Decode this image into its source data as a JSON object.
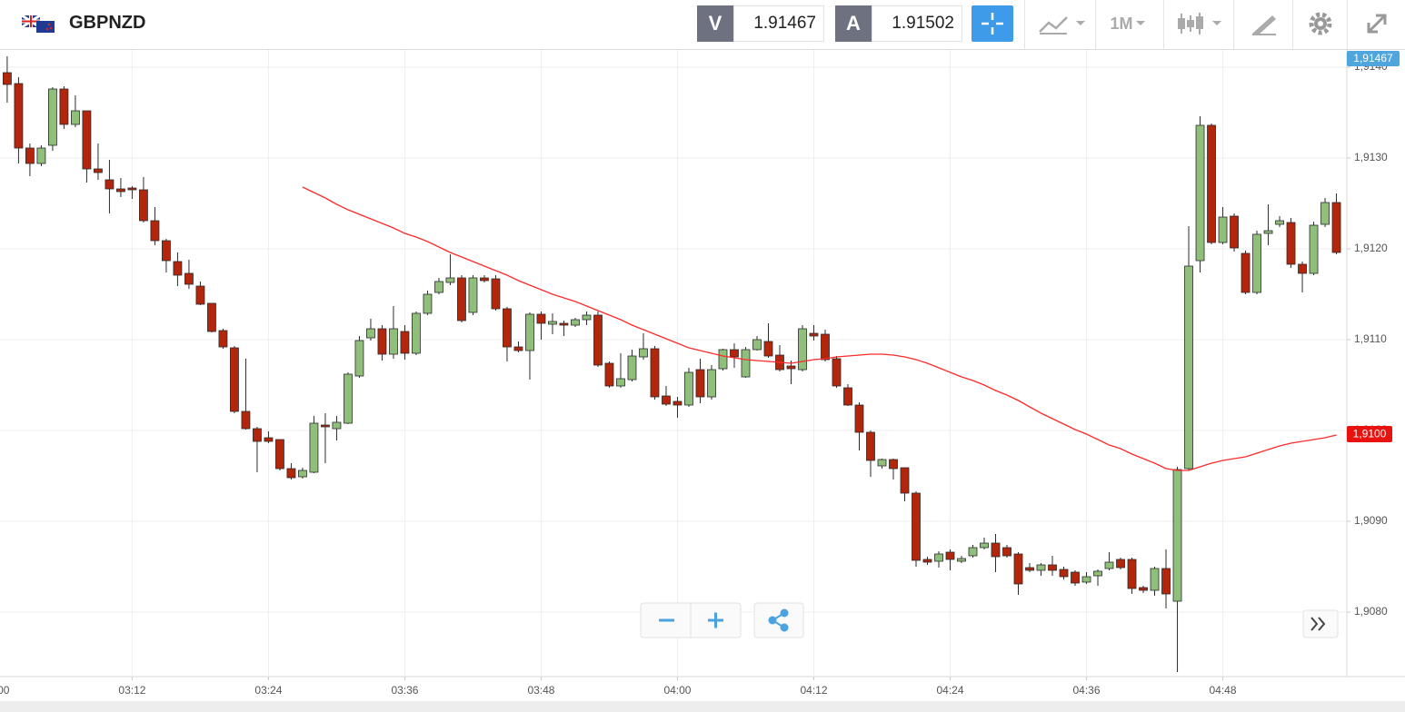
{
  "header": {
    "symbol": "GBPNZD",
    "bid_label": "V",
    "bid": "1.91467",
    "ask_label": "A",
    "ask": "1.91502",
    "timeframe": "1M"
  },
  "chart_data": {
    "type": "candlestick",
    "x": [
      "03:01",
      "03:02",
      "03:03",
      "03:04",
      "03:05",
      "03:06",
      "03:07",
      "03:08",
      "03:09",
      "03:10",
      "03:11",
      "03:12",
      "03:13",
      "03:14",
      "03:15",
      "03:16",
      "03:17",
      "03:18",
      "03:19",
      "03:20",
      "03:21",
      "03:22",
      "03:23",
      "03:24",
      "03:25",
      "03:26",
      "03:27",
      "03:28",
      "03:29",
      "03:30",
      "03:31",
      "03:32",
      "03:33",
      "03:34",
      "03:35",
      "03:36",
      "03:37",
      "03:38",
      "03:39",
      "03:40",
      "03:41",
      "03:42",
      "03:43",
      "03:44",
      "03:45",
      "03:46",
      "03:47",
      "03:48",
      "03:49",
      "03:50",
      "03:51",
      "03:52",
      "03:53",
      "03:54",
      "03:55",
      "03:56",
      "03:57",
      "03:58",
      "03:59",
      "04:00",
      "04:01",
      "04:02",
      "04:03",
      "04:04",
      "04:05",
      "04:06",
      "04:07",
      "04:08",
      "04:09",
      "04:10",
      "04:11",
      "04:12",
      "04:13",
      "04:14",
      "04:15",
      "04:16",
      "04:17",
      "04:18",
      "04:19",
      "04:20",
      "04:21",
      "04:22",
      "04:23",
      "04:24",
      "04:25",
      "04:26",
      "04:27",
      "04:28",
      "04:29",
      "04:30",
      "04:31",
      "04:32",
      "04:33",
      "04:34",
      "04:35",
      "04:36",
      "04:37",
      "04:38",
      "04:39",
      "04:40",
      "04:41",
      "04:42",
      "04:43",
      "04:44",
      "04:45",
      "04:46",
      "04:47",
      "04:48",
      "04:49",
      "04:50",
      "04:51",
      "04:52",
      "04:53",
      "04:54",
      "04:55",
      "04:56",
      "04:57",
      "04:58"
    ],
    "open": [
      1.91394,
      1.91382,
      1.91311,
      1.91294,
      1.91314,
      1.91376,
      1.91337,
      1.91352,
      1.91288,
      1.91276,
      1.91266,
      1.91267,
      1.91265,
      1.91231,
      1.91209,
      1.91186,
      1.91173,
      1.91159,
      1.9114,
      1.9111,
      1.91091,
      1.91021,
      1.91002,
      1.90992,
      1.9099,
      1.90958,
      1.90949,
      1.90954,
      1.91006,
      1.91002,
      1.91008,
      1.9106,
      1.91102,
      1.91112,
      1.91084,
      1.91109,
      1.91085,
      1.91129,
      1.91152,
      1.91163,
      1.91168,
      1.9113,
      1.91168,
      1.91167,
      1.91134,
      1.91092,
      1.91088,
      1.91128,
      1.91117,
      1.91118,
      1.91116,
      1.91122,
      1.91127,
      1.91074,
      1.91049,
      1.91056,
      1.91081,
      1.9109,
      1.91038,
      1.91032,
      1.91028,
      1.91067,
      1.91037,
      1.91068,
      1.91089,
      1.91059,
      1.91089,
      1.91098,
      1.91083,
      1.91071,
      1.91067,
      1.91107,
      1.91106,
      1.91079,
      1.91047,
      1.91028,
      1.90998,
      1.90961,
      1.90968,
      1.90959,
      1.90931,
      1.90858,
      1.90856,
      1.90866,
      1.90856,
      1.90862,
      1.90871,
      1.90876,
      1.90871,
      1.90864,
      1.90849,
      1.90846,
      1.90852,
      1.90847,
      1.90844,
      1.90833,
      1.9084,
      1.90848,
      1.90858,
      1.90858,
      1.90827,
      1.90824,
      1.90848,
      1.90812,
      1.90958,
      1.91187,
      1.91336,
      1.91207,
      1.91236,
      1.91195,
      1.91152,
      1.91217,
      1.91227,
      1.91229,
      1.91183,
      1.91173,
      1.91227,
      1.91251
    ],
    "high": [
      1.91412,
      1.91389,
      1.91316,
      1.91314,
      1.91378,
      1.91379,
      1.91369,
      1.91352,
      1.91316,
      1.91298,
      1.91278,
      1.91269,
      1.91279,
      1.91246,
      1.91211,
      1.91196,
      1.91188,
      1.91164,
      1.9114,
      1.91112,
      1.91093,
      1.91079,
      1.91004,
      1.90999,
      1.9099,
      1.90964,
      1.90959,
      1.91016,
      1.91019,
      1.91016,
      1.91064,
      1.91104,
      1.91123,
      1.91116,
      1.91137,
      1.91116,
      1.91131,
      1.91154,
      1.91168,
      1.91194,
      1.91171,
      1.91171,
      1.91171,
      1.91171,
      1.91136,
      1.91098,
      1.9113,
      1.91131,
      1.91129,
      1.91121,
      1.91124,
      1.91131,
      1.91131,
      1.91076,
      1.91085,
      1.91089,
      1.91107,
      1.91093,
      1.91049,
      1.91037,
      1.91069,
      1.91079,
      1.91072,
      1.9109,
      1.91096,
      1.91092,
      1.91104,
      1.91118,
      1.91094,
      1.91077,
      1.91116,
      1.91116,
      1.91111,
      1.91082,
      1.91051,
      1.91031,
      1.91,
      1.90969,
      1.90969,
      1.90959,
      1.90933,
      1.90861,
      1.90867,
      1.90869,
      1.90862,
      1.90874,
      1.90882,
      1.90886,
      1.90874,
      1.90866,
      1.90854,
      1.90854,
      1.90862,
      1.9085,
      1.90846,
      1.90844,
      1.90847,
      1.90866,
      1.9086,
      1.9086,
      1.90829,
      1.9085,
      1.90869,
      1.9096,
      1.91225,
      1.91346,
      1.91338,
      1.91246,
      1.91239,
      1.91198,
      1.9122,
      1.91249,
      1.91236,
      1.91234,
      1.91186,
      1.9123,
      1.91256,
      1.91261
    ],
    "low": [
      1.91361,
      1.91294,
      1.9128,
      1.91291,
      1.91308,
      1.91332,
      1.91334,
      1.91273,
      1.91276,
      1.91239,
      1.91257,
      1.91255,
      1.91229,
      1.91204,
      1.91174,
      1.91159,
      1.91156,
      1.91138,
      1.91108,
      1.9109,
      1.91019,
      1.91001,
      1.90954,
      1.90986,
      1.90956,
      1.90946,
      1.90947,
      1.90953,
      1.90964,
      1.90989,
      1.91007,
      1.91058,
      1.91099,
      1.91077,
      1.91079,
      1.91078,
      1.91083,
      1.91127,
      1.9115,
      1.9116,
      1.91119,
      1.91127,
      1.91163,
      1.91132,
      1.91076,
      1.91086,
      1.91056,
      1.911,
      1.91106,
      1.91104,
      1.91114,
      1.91116,
      1.9107,
      1.91047,
      1.91047,
      1.91054,
      1.91078,
      1.91034,
      1.91027,
      1.91014,
      1.91026,
      1.9103,
      1.91034,
      1.91066,
      1.91069,
      1.91058,
      1.91088,
      1.9108,
      1.91065,
      1.91051,
      1.91065,
      1.91099,
      1.91076,
      1.91047,
      1.91027,
      1.90978,
      1.90949,
      1.90958,
      1.90946,
      1.90922,
      1.9085,
      1.90852,
      1.90849,
      1.90846,
      1.90854,
      1.9086,
      1.90869,
      1.90844,
      1.9086,
      1.90819,
      1.90844,
      1.9084,
      1.9084,
      1.90836,
      1.90829,
      1.90831,
      1.90829,
      1.90846,
      1.90847,
      1.9082,
      1.90821,
      1.90818,
      1.90804,
      1.90734,
      1.90956,
      1.91174,
      1.91205,
      1.91205,
      1.91197,
      1.9115,
      1.9115,
      1.91204,
      1.91224,
      1.91179,
      1.91152,
      1.91171,
      1.91224,
      1.91194
    ],
    "close": [
      1.91381,
      1.91311,
      1.91294,
      1.91311,
      1.91376,
      1.91337,
      1.91352,
      1.91288,
      1.91284,
      1.91266,
      1.91263,
      1.91265,
      1.91231,
      1.91209,
      1.91187,
      1.91171,
      1.91161,
      1.91139,
      1.91109,
      1.91092,
      1.91021,
      1.91002,
      1.90988,
      1.90988,
      1.90958,
      1.90948,
      1.90956,
      1.91008,
      1.91004,
      1.91009,
      1.91062,
      1.91099,
      1.91112,
      1.91084,
      1.91112,
      1.91085,
      1.91129,
      1.9115,
      1.91164,
      1.91168,
      1.91121,
      1.91168,
      1.91165,
      1.91134,
      1.91092,
      1.91088,
      1.91128,
      1.91118,
      1.9112,
      1.91116,
      1.91122,
      1.91127,
      1.91072,
      1.91049,
      1.91057,
      1.91082,
      1.9109,
      1.91037,
      1.91029,
      1.91028,
      1.91064,
      1.91037,
      1.91067,
      1.91089,
      1.91081,
      1.91089,
      1.911,
      1.91082,
      1.91067,
      1.91068,
      1.91112,
      1.91104,
      1.91078,
      1.91049,
      1.91028,
      1.90998,
      1.90967,
      1.90968,
      1.90958,
      1.90931,
      1.90857,
      1.90855,
      1.90864,
      1.90858,
      1.90859,
      1.90871,
      1.90876,
      1.90861,
      1.90862,
      1.90831,
      1.90846,
      1.90852,
      1.90846,
      1.90839,
      1.90832,
      1.90839,
      1.90845,
      1.90855,
      1.90849,
      1.90826,
      1.90824,
      1.90848,
      1.9082,
      1.90957,
      1.91181,
      1.91336,
      1.91207,
      1.91235,
      1.91201,
      1.91152,
      1.91216,
      1.9122,
      1.91231,
      1.91183,
      1.91173,
      1.91226,
      1.91251,
      1.91196
    ],
    "up_color": "#8fbf7a",
    "down_color": "#b3260b",
    "wick_color": "#2b2b2b",
    "ma": {
      "color": "#ff2a2a",
      "values": [
        null,
        null,
        null,
        null,
        null,
        null,
        null,
        null,
        null,
        null,
        null,
        null,
        null,
        null,
        null,
        null,
        null,
        null,
        null,
        null,
        null,
        null,
        null,
        null,
        null,
        null,
        1.91268,
        1.91262,
        1.91256,
        1.91249,
        1.91243,
        1.91238,
        1.91233,
        1.91228,
        1.91223,
        1.91217,
        1.91213,
        1.91208,
        1.91202,
        1.91196,
        1.91191,
        1.91186,
        1.91181,
        1.91176,
        1.91171,
        1.91165,
        1.9116,
        1.91155,
        1.9115,
        1.91146,
        1.91142,
        1.91137,
        1.91132,
        1.91127,
        1.91122,
        1.91116,
        1.91111,
        1.91106,
        1.91101,
        1.91096,
        1.91091,
        1.91088,
        1.91085,
        1.91082,
        1.9108,
        1.91078,
        1.91077,
        1.91076,
        1.91075,
        1.91074,
        1.91076,
        1.91078,
        1.91079,
        1.91081,
        1.91082,
        1.91083,
        1.91084,
        1.91084,
        1.91083,
        1.91081,
        1.91078,
        1.91074,
        1.91069,
        1.91064,
        1.91059,
        1.91055,
        1.9105,
        1.91044,
        1.91039,
        1.91033,
        1.91026,
        1.91019,
        1.91013,
        1.91007,
        1.91001,
        1.90996,
        1.9099,
        1.90984,
        1.9098,
        1.90974,
        1.90969,
        1.90964,
        1.90958,
        1.90956,
        1.90956,
        1.9096,
        1.90964,
        1.90967,
        1.90969,
        1.90971,
        1.90975,
        1.90979,
        1.90983,
        1.90986,
        1.90988,
        1.9099,
        1.90992,
        1.90995
      ]
    },
    "xlim": [
      "03:00:22",
      "04:58:55"
    ],
    "xticks": [
      "03:00",
      "03:12",
      "03:24",
      "03:36",
      "03:48",
      "04:00",
      "04:12",
      "04:24",
      "04:36",
      "04:48"
    ],
    "ylim": [
      1.90729,
      1.91419
    ],
    "yticks": [
      {
        "value": 1.908,
        "label": "1,9080"
      },
      {
        "value": 1.909,
        "label": "1,9090"
      },
      {
        "value": 1.91,
        "label": "1,9100"
      },
      {
        "value": 1.911,
        "label": "1,9110"
      },
      {
        "value": 1.912,
        "label": "1,9120"
      },
      {
        "value": 1.913,
        "label": "1,9130"
      },
      {
        "value": 1.914,
        "label": "1,9140"
      }
    ],
    "grid": true,
    "price_badge": "1,91467",
    "ma_badge": "1,9100"
  }
}
